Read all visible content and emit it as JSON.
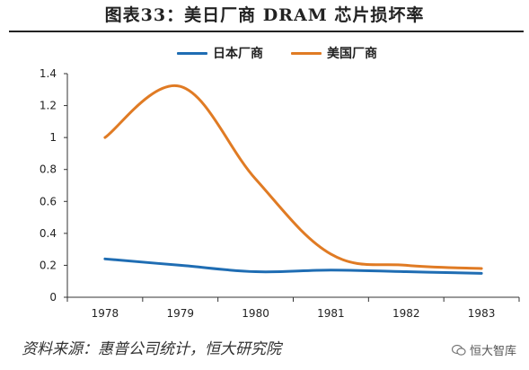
{
  "title": "图表33：美日厂商 DRAM 芯片损坏率",
  "source": "资料来源：惠普公司统计，恒大研究院",
  "watermark": "恒大智库",
  "chart_data": {
    "type": "line",
    "title": "图表33：美日厂商 DRAM 芯片损坏率",
    "xlabel": "",
    "ylabel": "",
    "categories": [
      "1978",
      "1979",
      "1980",
      "1981",
      "1982",
      "1983"
    ],
    "ylim": [
      0,
      1.4
    ],
    "yticks": [
      0,
      0.2,
      0.4,
      0.6,
      0.8,
      1,
      1.2,
      1.4
    ],
    "ytick_labels": [
      "0",
      "0.2",
      "0.4",
      "0.6",
      "0.8",
      "1",
      "1.2",
      "1.4"
    ],
    "grid": false,
    "legend_position": "top-center",
    "series": [
      {
        "name": "日本厂商",
        "color": "#1f6db3",
        "values": [
          0.24,
          0.2,
          0.16,
          0.17,
          0.16,
          0.15
        ]
      },
      {
        "name": "美国厂商",
        "color": "#e07b24",
        "values": [
          1.0,
          1.32,
          0.74,
          0.27,
          0.2,
          0.18
        ]
      }
    ]
  }
}
